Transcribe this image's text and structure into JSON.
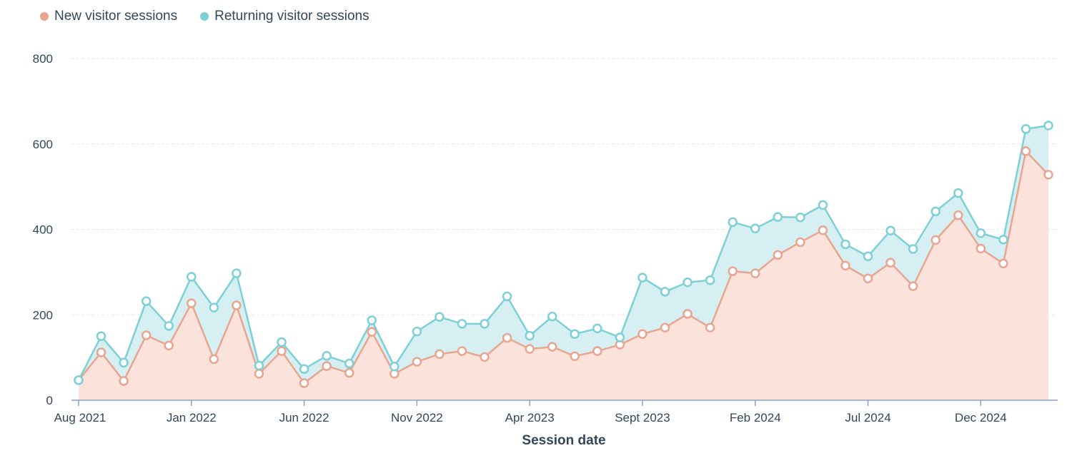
{
  "legend": {
    "new_label": "New visitor sessions",
    "returning_label": "Returning visitor sessions"
  },
  "colors": {
    "new_line": "#e8a58f",
    "new_fill": "#fbe3dc",
    "returning_line": "#7dd0d6",
    "returning_fill": "#d6eff2",
    "grid": "#e3e7ec",
    "axis": "#8aa0c8",
    "text": "#33475b"
  },
  "chart_data": {
    "type": "area",
    "stacked": true,
    "title": "",
    "xlabel": "Session date",
    "ylabel": "",
    "ylim": [
      0,
      800
    ],
    "yticks": [
      0,
      200,
      400,
      600,
      800
    ],
    "grid": true,
    "legend_position": "top-left",
    "x": [
      "2021-08",
      "2021-09",
      "2021-10",
      "2021-11",
      "2021-12",
      "2022-01",
      "2022-02",
      "2022-03",
      "2022-04",
      "2022-05",
      "2022-06",
      "2022-07",
      "2022-08",
      "2022-09",
      "2022-10",
      "2022-11",
      "2022-12",
      "2023-01",
      "2023-02",
      "2023-03",
      "2023-04",
      "2023-05",
      "2023-06",
      "2023-07",
      "2023-08",
      "2023-09",
      "2023-10",
      "2023-11",
      "2023-12",
      "2024-01",
      "2024-02",
      "2024-03",
      "2024-04",
      "2024-05",
      "2024-06",
      "2024-07",
      "2024-08",
      "2024-09",
      "2024-10",
      "2024-11",
      "2024-12",
      "2025-01",
      "2025-02",
      "2025-03"
    ],
    "xticks": [
      {
        "label": "Aug 2021",
        "x": "2021-08"
      },
      {
        "label": "Jan 2022",
        "x": "2022-01"
      },
      {
        "label": "Jun 2022",
        "x": "2022-06"
      },
      {
        "label": "Nov 2022",
        "x": "2022-11"
      },
      {
        "label": "Apr 2023",
        "x": "2023-04"
      },
      {
        "label": "Sept 2023",
        "x": "2023-09"
      },
      {
        "label": "Feb 2024",
        "x": "2024-02"
      },
      {
        "label": "Jul 2024",
        "x": "2024-07"
      },
      {
        "label": "Dec 2024",
        "x": "2024-12"
      }
    ],
    "series": [
      {
        "name": "New visitor sessions",
        "values": [
          47,
          112,
          45,
          152,
          128,
          227,
          96,
          222,
          62,
          115,
          40,
          80,
          64,
          160,
          62,
          90,
          108,
          115,
          101,
          146,
          120,
          125,
          103,
          115,
          130,
          155,
          170,
          202,
          170,
          302,
          297,
          340,
          370,
          398,
          315,
          285,
          322,
          267,
          375,
          433,
          355,
          320,
          583,
          528
        ]
      },
      {
        "name": "Returning visitor sessions",
        "values": [
          0,
          38,
          43,
          80,
          46,
          62,
          121,
          75,
          19,
          21,
          33,
          24,
          22,
          27,
          17,
          71,
          87,
          64,
          78,
          97,
          31,
          71,
          52,
          53,
          17,
          132,
          84,
          74,
          111,
          115,
          105,
          89,
          58,
          59,
          50,
          52,
          75,
          87,
          67,
          52,
          36,
          56,
          52,
          115
        ]
      }
    ]
  }
}
